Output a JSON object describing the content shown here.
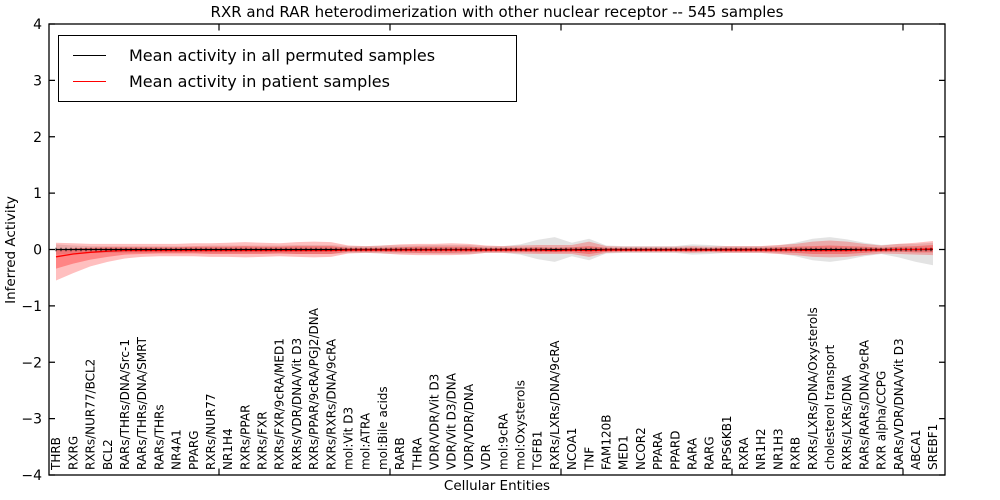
{
  "chart_data": {
    "type": "line",
    "title": "RXR and RAR heterodimerization with other nuclear receptor -- 545 samples",
    "xlabel": "Cellular Entities",
    "ylabel": "Inferred Activity",
    "ylim": [
      -4,
      4
    ],
    "ytick_labels": [
      "4",
      "3",
      "2",
      "1",
      "0",
      "−1",
      "−2",
      "−3",
      "−4"
    ],
    "grid": false,
    "legend_position": "upper left",
    "sample_count_in_title": 545,
    "categories": [
      "THRB",
      "RXRG",
      "RXRs/NUR77/BCL2",
      "BCL2",
      "RARs/THRs/DNA/Src-1",
      "RARs/THRs/DNA/SMRT",
      "RARs/THRs",
      "NR4A1",
      "PPARG",
      "RXRs/NUR77",
      "NR1H4",
      "RXRs/PPAR",
      "RXRs/FXR",
      "RXRs/FXR/9cRA/MED1",
      "RXRs/VDR/DNA/Vit D3",
      "RXRs/PPAR/9cRA/PGJ2/DNA",
      "RXRs/RXRs/DNA/9cRA",
      "mol:Vit D3",
      "mol:ATRA",
      "mol:Bile acids",
      "RARB",
      "THRA",
      "VDR/VDR/Vit D3",
      "VDR/Vit D3/DNA",
      "VDR/VDR/DNA",
      "VDR",
      "mol:9cRA",
      "mol:Oxysterols",
      "TGFB1",
      "RXRs/LXRs/DNA/9cRA",
      "NCOA1",
      "TNF",
      "FAM120B",
      "MED1",
      "NCOR2",
      "PPARA",
      "PPARD",
      "RARA",
      "RARG",
      "RPS6KB1",
      "RXRA",
      "NR1H2",
      "NR1H3",
      "RXRB",
      "RXRs/LXRs/DNA/Oxysterols",
      "cholesterol transport",
      "RXRs/LXRs/DNA",
      "RARs/RARs/DNA/9cRA",
      "RXR alpha/CCPG",
      "RARs/VDR/DNA/Vit D3",
      "ABCA1",
      "SREBF1"
    ],
    "series": [
      {
        "name": "Mean activity in all permuted samples",
        "color": "#000000",
        "values": [
          0,
          0,
          0,
          0,
          0,
          0,
          0,
          0,
          0,
          0,
          0,
          0,
          0,
          0,
          0,
          0,
          0,
          0,
          0,
          0,
          0,
          0,
          0,
          0,
          0,
          0,
          0,
          0,
          0,
          0,
          0,
          0,
          0,
          0,
          0,
          0,
          0,
          0,
          0,
          0,
          0,
          0,
          0,
          0,
          0,
          0,
          0,
          0,
          0,
          0,
          0,
          0
        ]
      },
      {
        "name": "Mean activity in patient samples",
        "color": "#ff0000",
        "values": [
          -0.13,
          -0.08,
          -0.05,
          -0.03,
          -0.02,
          -0.02,
          -0.02,
          -0.02,
          -0.02,
          -0.02,
          -0.02,
          -0.02,
          -0.02,
          -0.02,
          -0.02,
          -0.02,
          -0.02,
          -0.01,
          -0.01,
          -0.01,
          -0.01,
          -0.01,
          -0.01,
          -0.01,
          -0.01,
          -0.01,
          -0.01,
          -0.01,
          -0.01,
          -0.02,
          -0.01,
          -0.02,
          -0.01,
          -0.01,
          -0.01,
          -0.01,
          -0.01,
          -0.01,
          -0.01,
          -0.01,
          -0.01,
          -0.01,
          -0.01,
          -0.01,
          -0.02,
          -0.02,
          -0.02,
          -0.01,
          -0.01,
          0.0,
          0.0,
          0.01
        ]
      }
    ],
    "bands": [
      {
        "name": "permuted-samples-range",
        "color": "#808080",
        "opacity": 0.22,
        "hi": [
          0.09,
          0.07,
          0.06,
          0.06,
          0.06,
          0.06,
          0.06,
          0.06,
          0.06,
          0.07,
          0.07,
          0.07,
          0.07,
          0.07,
          0.08,
          0.08,
          0.08,
          0.06,
          0.06,
          0.07,
          0.07,
          0.07,
          0.08,
          0.08,
          0.08,
          0.06,
          0.06,
          0.09,
          0.17,
          0.22,
          0.12,
          0.19,
          0.07,
          0.06,
          0.06,
          0.06,
          0.06,
          0.09,
          0.08,
          0.06,
          0.06,
          0.06,
          0.07,
          0.12,
          0.19,
          0.22,
          0.18,
          0.12,
          0.08,
          0.1,
          0.1,
          0.12
        ],
        "lo": [
          -0.09,
          -0.07,
          -0.06,
          -0.06,
          -0.06,
          -0.06,
          -0.06,
          -0.06,
          -0.06,
          -0.07,
          -0.07,
          -0.07,
          -0.07,
          -0.07,
          -0.08,
          -0.08,
          -0.08,
          -0.06,
          -0.06,
          -0.07,
          -0.07,
          -0.07,
          -0.08,
          -0.08,
          -0.08,
          -0.06,
          -0.06,
          -0.09,
          -0.17,
          -0.22,
          -0.12,
          -0.19,
          -0.07,
          -0.06,
          -0.06,
          -0.06,
          -0.06,
          -0.09,
          -0.08,
          -0.06,
          -0.06,
          -0.06,
          -0.07,
          -0.12,
          -0.19,
          -0.22,
          -0.18,
          -0.12,
          -0.08,
          -0.14,
          -0.22,
          -0.28
        ]
      },
      {
        "name": "patient-samples-range-outer",
        "color": "#ff0000",
        "opacity": 0.25,
        "hi": [
          0.12,
          0.11,
          0.1,
          0.1,
          0.1,
          0.1,
          0.1,
          0.1,
          0.11,
          0.11,
          0.12,
          0.13,
          0.12,
          0.11,
          0.13,
          0.14,
          0.13,
          0.07,
          0.06,
          0.07,
          0.09,
          0.1,
          0.1,
          0.11,
          0.1,
          0.07,
          0.06,
          0.07,
          0.08,
          0.08,
          0.08,
          0.14,
          0.06,
          0.05,
          0.05,
          0.05,
          0.05,
          0.06,
          0.05,
          0.06,
          0.06,
          0.06,
          0.08,
          0.1,
          0.14,
          0.16,
          0.14,
          0.1,
          0.07,
          0.1,
          0.12,
          0.15
        ],
        "lo": [
          -0.55,
          -0.42,
          -0.3,
          -0.22,
          -0.16,
          -0.13,
          -0.12,
          -0.12,
          -0.12,
          -0.13,
          -0.13,
          -0.14,
          -0.13,
          -0.12,
          -0.13,
          -0.14,
          -0.13,
          -0.07,
          -0.06,
          -0.07,
          -0.09,
          -0.1,
          -0.1,
          -0.1,
          -0.09,
          -0.06,
          -0.06,
          -0.07,
          -0.08,
          -0.08,
          -0.08,
          -0.13,
          -0.06,
          -0.05,
          -0.05,
          -0.05,
          -0.05,
          -0.06,
          -0.05,
          -0.06,
          -0.06,
          -0.06,
          -0.08,
          -0.1,
          -0.13,
          -0.14,
          -0.13,
          -0.1,
          -0.07,
          -0.08,
          -0.09,
          -0.1
        ]
      },
      {
        "name": "patient-samples-range-inner",
        "color": "#ff0000",
        "opacity": 0.3,
        "hi": [
          -0.01,
          0.02,
          0.03,
          0.04,
          0.04,
          0.04,
          0.04,
          0.04,
          0.05,
          0.05,
          0.05,
          0.06,
          0.05,
          0.05,
          0.06,
          0.06,
          0.06,
          0.03,
          0.03,
          0.03,
          0.04,
          0.05,
          0.05,
          0.05,
          0.05,
          0.03,
          0.03,
          0.03,
          0.04,
          0.03,
          0.04,
          0.06,
          0.03,
          0.02,
          0.02,
          0.02,
          0.02,
          0.03,
          0.02,
          0.03,
          0.03,
          0.03,
          0.04,
          0.05,
          0.06,
          0.07,
          0.06,
          0.05,
          0.03,
          0.05,
          0.06,
          0.08
        ],
        "lo": [
          -0.34,
          -0.25,
          -0.18,
          -0.13,
          -0.09,
          -0.08,
          -0.07,
          -0.07,
          -0.07,
          -0.08,
          -0.08,
          -0.08,
          -0.08,
          -0.07,
          -0.08,
          -0.08,
          -0.08,
          -0.04,
          -0.04,
          -0.04,
          -0.05,
          -0.06,
          -0.06,
          -0.06,
          -0.05,
          -0.04,
          -0.04,
          -0.04,
          -0.05,
          -0.05,
          -0.05,
          -0.08,
          -0.04,
          -0.03,
          -0.03,
          -0.03,
          -0.03,
          -0.04,
          -0.03,
          -0.04,
          -0.04,
          -0.04,
          -0.05,
          -0.06,
          -0.08,
          -0.08,
          -0.08,
          -0.06,
          -0.04,
          -0.04,
          -0.05,
          -0.05
        ]
      }
    ]
  }
}
